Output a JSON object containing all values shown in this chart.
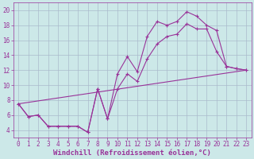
{
  "background_color": "#cce8e8",
  "line_color": "#993399",
  "grid_color": "#aabbcc",
  "xlabel": "Windchill (Refroidissement éolien,°C)",
  "xlabel_fontsize": 6.5,
  "tick_fontsize": 5.5,
  "xlim": [
    -0.5,
    23.5
  ],
  "ylim": [
    3.0,
    21.0
  ],
  "yticks": [
    4,
    6,
    8,
    10,
    12,
    14,
    16,
    18,
    20
  ],
  "xticks": [
    0,
    1,
    2,
    3,
    4,
    5,
    6,
    7,
    8,
    9,
    10,
    11,
    12,
    13,
    14,
    15,
    16,
    17,
    18,
    19,
    20,
    21,
    22,
    23
  ],
  "line1_x": [
    0,
    1,
    2,
    3,
    4,
    5,
    6,
    7,
    8,
    9,
    10,
    11,
    12,
    13,
    14,
    15,
    16,
    17,
    18,
    19,
    20,
    21,
    22,
    23
  ],
  "line1_y": [
    7.5,
    5.8,
    6.0,
    4.5,
    4.5,
    4.5,
    4.5,
    3.7,
    9.5,
    5.5,
    11.5,
    13.8,
    11.8,
    16.5,
    18.5,
    18.0,
    18.5,
    19.8,
    19.2,
    18.0,
    17.3,
    12.5,
    12.2,
    12.0
  ],
  "line2_x": [
    0,
    1,
    2,
    3,
    4,
    5,
    6,
    7,
    8,
    9,
    10,
    11,
    12,
    13,
    14,
    15,
    16,
    17,
    18,
    19,
    20,
    21,
    22,
    23
  ],
  "line2_y": [
    7.5,
    5.8,
    6.0,
    4.5,
    4.5,
    4.5,
    4.5,
    3.7,
    9.5,
    5.5,
    9.5,
    11.5,
    10.5,
    13.5,
    15.5,
    16.5,
    16.8,
    18.2,
    17.5,
    17.5,
    14.5,
    12.5,
    12.2,
    12.0
  ],
  "line3_x": [
    0,
    23
  ],
  "line3_y": [
    7.5,
    12.0
  ]
}
